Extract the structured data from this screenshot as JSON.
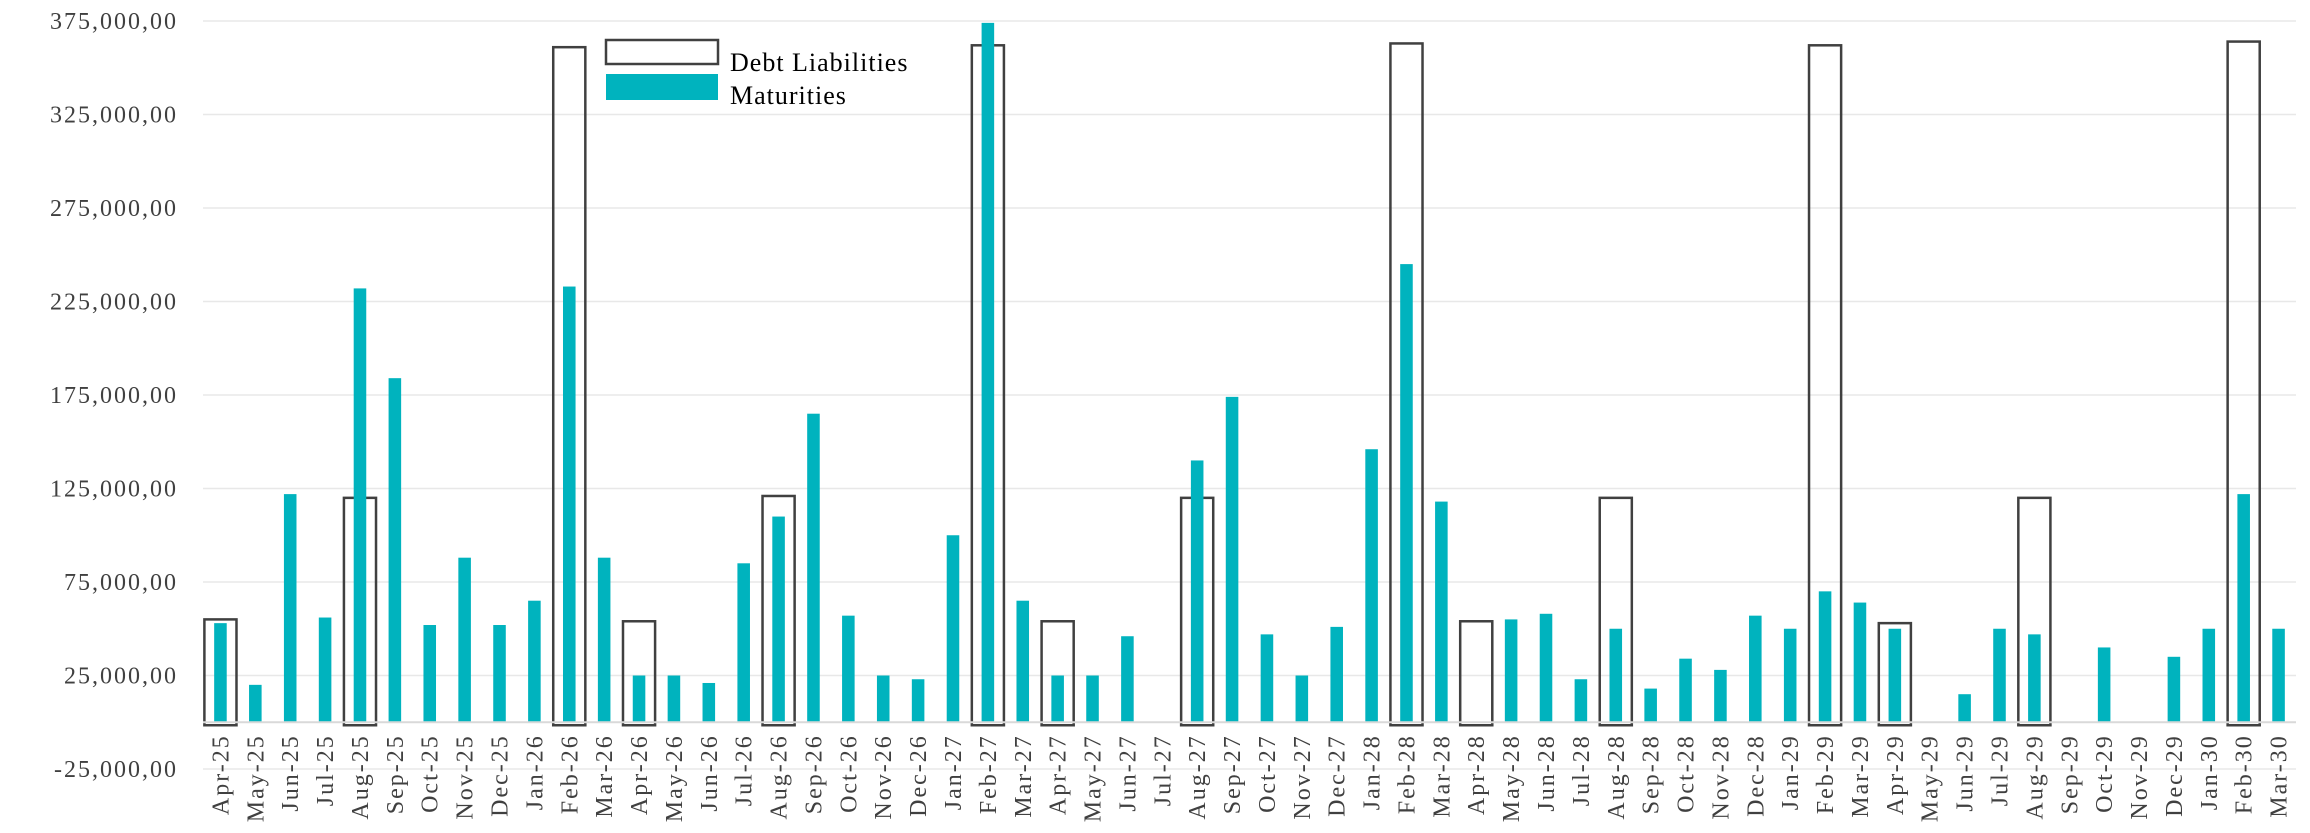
{
  "chart_data": {
    "type": "bar",
    "title": "",
    "xlabel": "",
    "ylabel": "",
    "ylim": [
      -25000000,
      375000000
    ],
    "grid": "horizontal",
    "legend_position": "top-left",
    "y_tick_labels": [
      "-25,000,00",
      "25,000,00",
      "75,000,00",
      "125,000,00",
      "175,000,00",
      "225,000,00",
      "275,000,00",
      "325,000,00",
      "375,000,00"
    ],
    "y_tick_values": [
      -25000000,
      25000000,
      75000000,
      125000000,
      175000000,
      225000000,
      275000000,
      325000000,
      375000000
    ],
    "categories": [
      "Apr-25",
      "May-25",
      "Jun-25",
      "Jul-25",
      "Aug-25",
      "Sep-25",
      "Oct-25",
      "Nov-25",
      "Dec-25",
      "Jan-26",
      "Feb-26",
      "Mar-26",
      "Apr-26",
      "May-26",
      "Jun-26",
      "Jul-26",
      "Aug-26",
      "Sep-26",
      "Oct-26",
      "Nov-26",
      "Dec-26",
      "Jan-27",
      "Feb-27",
      "Mar-27",
      "Apr-27",
      "May-27",
      "Jun-27",
      "Jul-27",
      "Aug-27",
      "Sep-27",
      "Oct-27",
      "Nov-27",
      "Dec-27",
      "Jan-28",
      "Feb-28",
      "Mar-28",
      "Apr-28",
      "May-28",
      "Jun-28",
      "Jul-28",
      "Aug-28",
      "Sep-28",
      "Oct-28",
      "Nov-28",
      "Dec-28",
      "Jan-29",
      "Feb-29",
      "Mar-29",
      "Apr-29",
      "May-29",
      "Jun-29",
      "Jul-29",
      "Aug-29",
      "Sep-29",
      "Oct-29",
      "Nov-29",
      "Dec-29",
      "Jan-30",
      "Feb-30",
      "Mar-30"
    ],
    "series": [
      {
        "name": "Debt Liabilities",
        "style": "outline",
        "color": "#404040",
        "values": [
          55000000,
          0,
          0,
          0,
          120000000,
          0,
          0,
          0,
          0,
          0,
          361000000,
          0,
          54000000,
          0,
          0,
          0,
          121000000,
          0,
          0,
          0,
          0,
          0,
          362000000,
          0,
          54000000,
          0,
          0,
          0,
          120000000,
          0,
          0,
          0,
          0,
          0,
          363000000,
          0,
          54000000,
          0,
          0,
          0,
          120000000,
          0,
          0,
          0,
          0,
          0,
          362000000,
          0,
          53000000,
          0,
          0,
          0,
          120000000,
          0,
          0,
          0,
          0,
          0,
          364000000,
          0
        ]
      },
      {
        "name": "Maturities",
        "style": "filled",
        "color": "#00B3BE",
        "values": [
          53000000,
          20000000,
          122000000,
          56000000,
          232000000,
          184000000,
          52000000,
          88000000,
          52000000,
          65000000,
          233000000,
          88000000,
          25000000,
          25000000,
          21000000,
          85000000,
          110000000,
          165000000,
          57000000,
          25000000,
          23000000,
          100000000,
          374000000,
          65000000,
          25000000,
          25000000,
          46000000,
          0,
          140000000,
          174000000,
          47000000,
          25000000,
          51000000,
          146000000,
          245000000,
          118000000,
          0,
          55000000,
          58000000,
          23000000,
          50000000,
          18000000,
          34000000,
          28000000,
          57000000,
          50000000,
          70000000,
          64000000,
          50000000,
          0,
          15000000,
          50000000,
          47000000,
          0,
          40000000,
          0,
          35000000,
          50000000,
          122000000,
          50000000
        ]
      }
    ]
  }
}
